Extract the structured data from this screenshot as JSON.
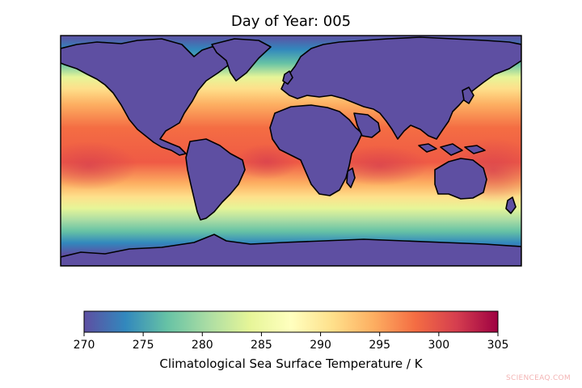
{
  "figure": {
    "title": "Day of Year: 005",
    "colorbar": {
      "label": "Climatological Sea Surface Temperature / K",
      "min": 270,
      "max": 305,
      "ticks": [
        "270",
        "275",
        "280",
        "285",
        "290",
        "295",
        "300",
        "305"
      ],
      "colormap": "Spectral_r",
      "colors": [
        "#5e4fa2",
        "#3288bd",
        "#66c2a5",
        "#abdda4",
        "#e6f598",
        "#ffffbf",
        "#fee08b",
        "#fdae61",
        "#f46d43",
        "#d53e4f",
        "#9e0142"
      ]
    },
    "land_color": "#5e4fa2",
    "coastline_color": "#000000"
  },
  "watermark": "SCIENCEAQ.COM"
}
